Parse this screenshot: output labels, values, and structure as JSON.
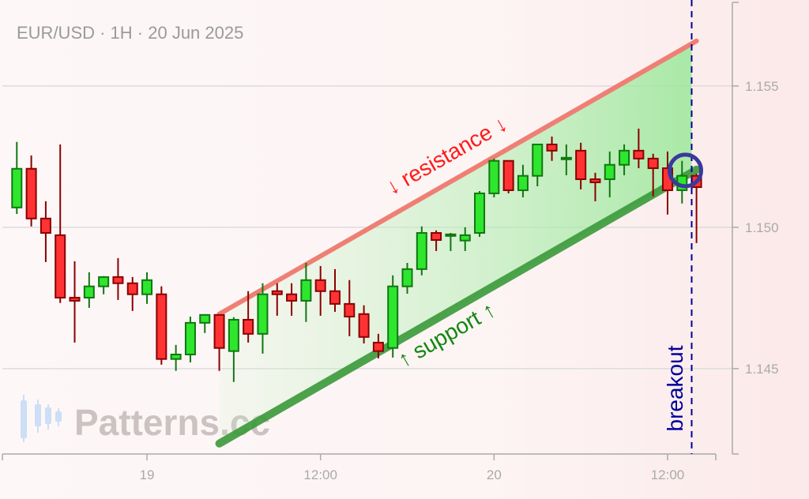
{
  "title": "EUR/USD · 1H · 20 Jun 2025",
  "watermark": "Patterns.cc",
  "colors": {
    "bull": "#2ee62e",
    "bull_edge": "#117711",
    "bear": "#ff3333",
    "bear_edge": "#8b0000",
    "resistance": "#ef7f74",
    "support": "#3a9a3a",
    "breakout": "#000099",
    "circle": "#3a3a9a"
  },
  "chart_data": {
    "type": "candlestick",
    "interval": "1H",
    "xlim": [
      "2025-06-18T14:00",
      "2025-06-20T15:20"
    ],
    "ylim": [
      1.14198,
      1.15804
    ],
    "grid": true,
    "y_ticks": [
      {
        "value": 1.155,
        "label": "1.155"
      },
      {
        "value": 1.15,
        "label": "1.150"
      },
      {
        "value": 1.145,
        "label": "1.145"
      }
    ],
    "x_ticks": [
      {
        "time": "2025-06-19T00:00",
        "label": "19"
      },
      {
        "time": "2025-06-19T12:00",
        "label": "12:00"
      },
      {
        "time": "2025-06-20T00:00",
        "label": "20"
      },
      {
        "time": "2025-06-20T12:00",
        "label": "12:00"
      }
    ],
    "candles_start": "2025-06-18T15:00",
    "candles": [
      [
        1.1507,
        1.15302,
        1.15047,
        1.15207
      ],
      [
        1.15207,
        1.15254,
        1.15003,
        1.15031
      ],
      [
        1.15031,
        1.15092,
        1.14877,
        1.1498
      ],
      [
        1.14972,
        1.15293,
        1.14732,
        1.14751
      ],
      [
        1.14751,
        1.1488,
        1.14592,
        1.1474
      ],
      [
        1.14751,
        1.14841,
        1.14715,
        1.14791
      ],
      [
        1.14791,
        1.14827,
        1.14763,
        1.14824
      ],
      [
        1.14824,
        1.14891,
        1.14743,
        1.14802
      ],
      [
        1.14802,
        1.14824,
        1.14704,
        1.14763
      ],
      [
        1.14763,
        1.14841,
        1.14729,
        1.14813
      ],
      [
        1.14763,
        1.14791,
        1.14514,
        1.14534
      ],
      [
        1.14534,
        1.14584,
        1.14492,
        1.1455
      ],
      [
        1.1455,
        1.14684,
        1.14522,
        1.14662
      ],
      [
        1.14662,
        1.1469,
        1.14626,
        1.1469
      ],
      [
        1.1469,
        1.1469,
        1.14492,
        1.14573
      ],
      [
        1.14562,
        1.14682,
        1.14453,
        1.14673
      ],
      [
        1.14673,
        1.14774,
        1.14592,
        1.14623
      ],
      [
        1.14623,
        1.14802,
        1.14553,
        1.14763
      ],
      [
        1.14774,
        1.14802,
        1.14687,
        1.14763
      ],
      [
        1.14763,
        1.14802,
        1.14687,
        1.1474
      ],
      [
        1.1474,
        1.14874,
        1.14665,
        1.14813
      ],
      [
        1.14813,
        1.14863,
        1.14687,
        1.14774
      ],
      [
        1.14774,
        1.14852,
        1.14701,
        1.14729
      ],
      [
        1.14729,
        1.14813,
        1.14615,
        1.14684
      ],
      [
        1.14693,
        1.14724,
        1.14589,
        1.14612
      ],
      [
        1.14592,
        1.14623,
        1.14536,
        1.14562
      ],
      [
        1.14573,
        1.1483,
        1.14539,
        1.14791
      ],
      [
        1.14791,
        1.14874,
        1.14765,
        1.14852
      ],
      [
        1.14852,
        1.15003,
        1.1483,
        1.1498
      ],
      [
        1.1498,
        1.14989,
        1.14916,
        1.14955
      ],
      [
        1.14972,
        1.1498,
        1.14916,
        1.14975
      ],
      [
        1.14953,
        1.15,
        1.14916,
        1.14972
      ],
      [
        1.1498,
        1.15128,
        1.14966,
        1.1512
      ],
      [
        1.1512,
        1.15243,
        1.15106,
        1.15235
      ],
      [
        1.15235,
        1.15235,
        1.1512,
        1.15131
      ],
      [
        1.15131,
        1.15221,
        1.15106,
        1.15182
      ],
      [
        1.15182,
        1.15293,
        1.15145,
        1.15293
      ],
      [
        1.15293,
        1.15321,
        1.15235,
        1.15271
      ],
      [
        1.15243,
        1.15293,
        1.15184,
        1.15246
      ],
      [
        1.15271,
        1.15299,
        1.15134,
        1.1517
      ],
      [
        1.1517,
        1.15193,
        1.15092,
        1.15159
      ],
      [
        1.1517,
        1.15268,
        1.15106,
        1.15221
      ],
      [
        1.15221,
        1.15293,
        1.15184,
        1.15271
      ],
      [
        1.15271,
        1.15349,
        1.15209,
        1.15243
      ],
      [
        1.15243,
        1.1526,
        1.15109,
        1.15209
      ],
      [
        1.15209,
        1.15268,
        1.15045,
        1.15131
      ],
      [
        1.15131,
        1.15235,
        1.15084,
        1.15182
      ],
      [
        1.15182,
        1.1519,
        1.14944,
        1.15142
      ]
    ],
    "resistance": {
      "label": "↓ resistance ↓",
      "from": {
        "time": "2025-06-19T05:00",
        "price": 1.14693
      },
      "to": {
        "time": "2025-06-20T14:00",
        "price": 1.15659
      }
    },
    "support": {
      "label": "↑ support ↑",
      "from": {
        "time": "2025-06-19T05:00",
        "price": 1.14235
      },
      "to": {
        "time": "2025-06-20T14:00",
        "price": 1.15204
      }
    },
    "breakout": {
      "label": "breakout",
      "time": "2025-06-20T13:40",
      "price": 1.15201
    }
  }
}
